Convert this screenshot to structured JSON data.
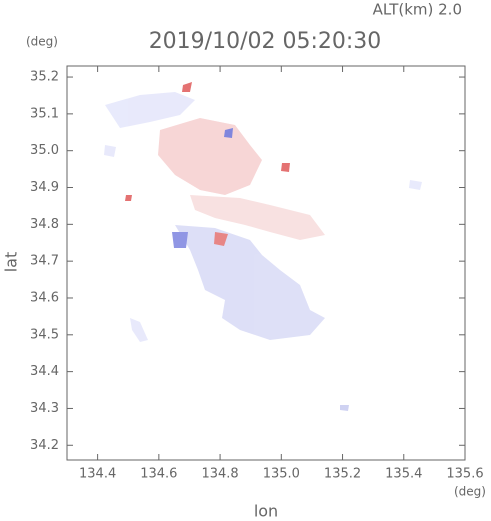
{
  "chart_data": {
    "type": "map",
    "title": "2019/10/02 05:20:30",
    "subtitle": "ALT(km) 2.0",
    "y_unit": "(deg)",
    "x_unit": "(deg)",
    "y_label": "lat",
    "x_label": "lon",
    "xlim": [
      134.3,
      135.6
    ],
    "ylim": [
      34.16,
      35.23
    ],
    "xticks": [
      134.4,
      134.6,
      134.8,
      {
        "value": 135.0,
        "label": "135.0"
      },
      135.2,
      135.4,
      135.6
    ],
    "yticks": [
      34.2,
      34.3,
      34.4,
      34.5,
      34.6,
      34.7,
      34.8,
      34.9,
      {
        "value": 35.0,
        "label": "35.0"
      },
      35.1,
      35.2
    ]
  }
}
